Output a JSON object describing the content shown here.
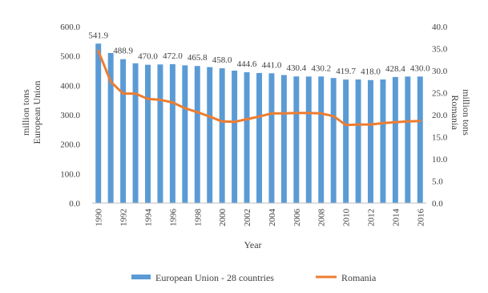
{
  "chart_data": {
    "type": "bar",
    "xlabel": "Year",
    "ylabel_left": [
      "million tons",
      "European Union"
    ],
    "ylabel_right": [
      "million tons",
      "Romania"
    ],
    "ylim_left": [
      0,
      600
    ],
    "ylim_right": [
      0,
      40
    ],
    "yticks_left": [
      "0.0",
      "100.0",
      "200.0",
      "300.0",
      "400.0",
      "500.0",
      "600.0"
    ],
    "yticks_right": [
      "0.0",
      "5.0",
      "10.0",
      "15.0",
      "20.0",
      "25.0",
      "30.0",
      "35.0",
      "40.0"
    ],
    "years": [
      1990,
      1991,
      1992,
      1993,
      1994,
      1995,
      1996,
      1997,
      1998,
      1999,
      2000,
      2001,
      2002,
      2003,
      2004,
      2005,
      2006,
      2007,
      2008,
      2009,
      2010,
      2011,
      2012,
      2013,
      2014,
      2015,
      2016
    ],
    "xtick_labels": [
      "1990",
      "1992",
      "1994",
      "1996",
      "1998",
      "2000",
      "2002",
      "2004",
      "2006",
      "2008",
      "2010",
      "2012",
      "2014",
      "2016"
    ],
    "grid": false,
    "legend_position": "bottom",
    "series": [
      {
        "name": "European Union - 28 countries",
        "type": "bar",
        "axis": "left",
        "color": "#5b9bd5",
        "values": [
          541.9,
          510.0,
          488.9,
          475.0,
          470.0,
          471.0,
          472.0,
          468.0,
          465.8,
          462.0,
          458.0,
          450.0,
          444.6,
          442.0,
          441.0,
          435.0,
          430.4,
          430.0,
          430.2,
          425.0,
          419.7,
          420.0,
          418.0,
          420.0,
          428.4,
          430.0,
          430.0
        ],
        "labels": [
          "541.9",
          "",
          "488.9",
          "",
          "470.0",
          "",
          "472.0",
          "",
          "465.8",
          "",
          "458.0",
          "",
          "444.6",
          "",
          "441.0",
          "",
          "430.4",
          "",
          "430.2",
          "",
          "419.7",
          "",
          "418.0",
          "",
          "428.4",
          "",
          "430.0"
        ]
      },
      {
        "name": "Romania",
        "type": "line",
        "axis": "right",
        "color": "#ed7d31",
        "values": [
          34.5,
          27.5,
          24.8,
          24.8,
          23.6,
          23.4,
          22.8,
          21.5,
          20.6,
          19.6,
          18.5,
          18.4,
          19.0,
          19.6,
          20.3,
          20.3,
          20.4,
          20.4,
          20.3,
          19.7,
          17.7,
          17.8,
          17.8,
          18.1,
          18.3,
          18.5,
          18.6
        ]
      }
    ]
  }
}
